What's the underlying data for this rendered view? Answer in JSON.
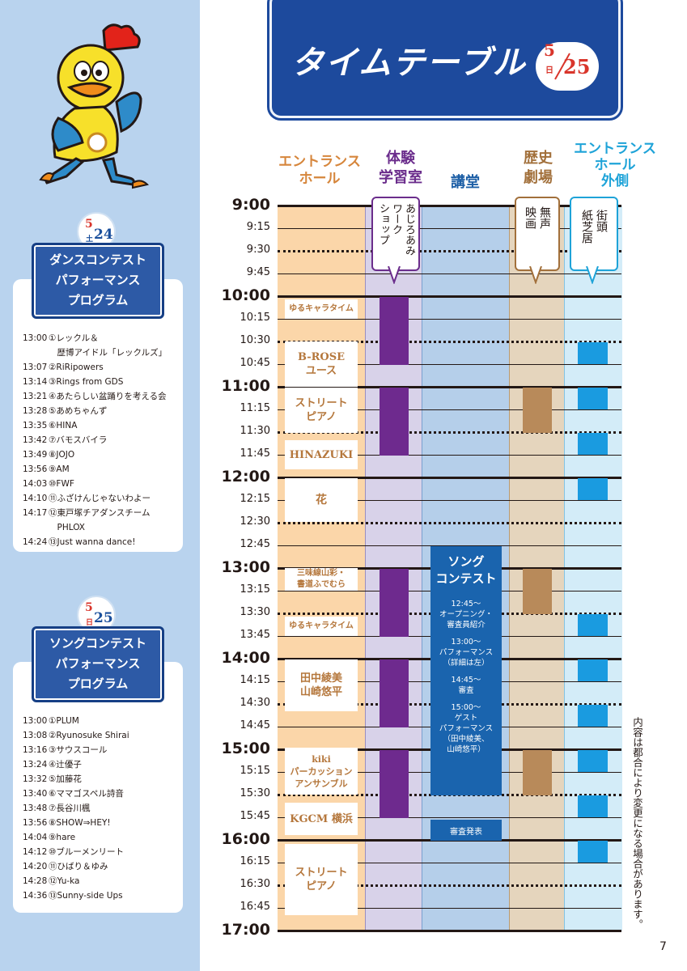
{
  "header": {
    "title": "タイムテーブル",
    "date_month": "5",
    "date_day": "25",
    "date_weekday": "日"
  },
  "columns": [
    {
      "label": "エントランス\nホール",
      "color": "#d6863c"
    },
    {
      "label": "体験\n学習室",
      "color": "#6b2d8c"
    },
    {
      "label": "講堂",
      "color": "#1d5fa6"
    },
    {
      "label": "歴史\n劇場",
      "color": "#a2703b"
    },
    {
      "label": "エントランス\nホール\n外側",
      "color": "#1ea3d8"
    }
  ],
  "time_labels": [
    "9:00",
    "9:15",
    "9:30",
    "9:45",
    "10:00",
    "10:15",
    "10:30",
    "10:45",
    "11:00",
    "11:15",
    "11:30",
    "11:45",
    "12:00",
    "12:15",
    "12:30",
    "12:45",
    "13:00",
    "13:15",
    "13:30",
    "13:45",
    "14:00",
    "14:15",
    "14:30",
    "14:45",
    "15:00",
    "15:15",
    "15:30",
    "15:45",
    "16:00",
    "16:15",
    "16:30",
    "16:45",
    "17:00"
  ],
  "entrance_events": [
    {
      "label": "ゆるキャラタイム"
    },
    {
      "label": "B-ROSE\nユース"
    },
    {
      "label": "ストリート\nピアノ"
    },
    {
      "label": "HINAZUKI"
    },
    {
      "label": "花"
    },
    {
      "label": "三味線山彩・\n書道ふでむら"
    },
    {
      "label": "ゆるキャラタイム"
    },
    {
      "label": "田中綾美\n山崎悠平"
    },
    {
      "label": "kiki\nパーカッション\nアンサンブル"
    },
    {
      "label": "KGCM 横浜"
    },
    {
      "label": "ストリート\nピアノ"
    }
  ],
  "callouts": {
    "workshop": "あじろあみ\nワーク\nショップ",
    "silent_film": "無声\n映画",
    "street": "街頭\n紙芝居"
  },
  "song_contest": {
    "title": "ソング\nコンテスト",
    "items": [
      "12:45～\nオープニング・\n審査員紹介",
      "13:00～\nパフォーマンス\n（詳細は左）",
      "14:45～\n審査",
      "15:00～\nゲスト\nパフォーマンス\n（田中綾美、\n山崎悠平）"
    ],
    "result": "審査発表"
  },
  "note": "内容は都合により変更になる場合があります。",
  "page_number": "7",
  "program_524": {
    "badge_month": "5",
    "badge_day": "24",
    "badge_weekday": "土",
    "title": "ダンスコンテスト\nパフォーマンス\nプログラム",
    "items": [
      {
        "time": "13:00",
        "name": "①レックル＆\n　歴博アイドル「レックルズ」"
      },
      {
        "time": "13:07",
        "name": "②RiRipowers"
      },
      {
        "time": "13:14",
        "name": "③Rings from GDS"
      },
      {
        "time": "13:21",
        "name": "④あたらしい盆踊りを考える会"
      },
      {
        "time": "13:28",
        "name": "⑤あめちゃんず"
      },
      {
        "time": "13:35",
        "name": "⑥HINA"
      },
      {
        "time": "13:42",
        "name": "⑦バモスバイラ"
      },
      {
        "time": "13:49",
        "name": "⑧JOJO"
      },
      {
        "time": "13:56",
        "name": "⑨AM"
      },
      {
        "time": "14:03",
        "name": "⑩FWF"
      },
      {
        "time": "14:10",
        "name": "⑪ふざけんじゃないわよー"
      },
      {
        "time": "14:17",
        "name": "⑫東戸塚チアダンスチーム\n　PHLOX"
      },
      {
        "time": "14:24",
        "name": "⑬Just wanna dance!"
      }
    ]
  },
  "program_525": {
    "badge_month": "5",
    "badge_day": "25",
    "badge_weekday": "日",
    "title": "ソングコンテスト\nパフォーマンス\nプログラム",
    "items": [
      {
        "time": "13:00",
        "name": "①PLUM"
      },
      {
        "time": "13:08",
        "name": "②Ryunosuke Shirai"
      },
      {
        "time": "13:16",
        "name": "③サウスコール"
      },
      {
        "time": "13:24",
        "name": "④辻優子"
      },
      {
        "time": "13:32",
        "name": "⑤加藤花"
      },
      {
        "time": "13:40",
        "name": "⑥ママゴスペル詩音"
      },
      {
        "time": "13:48",
        "name": "⑦長谷川楓"
      },
      {
        "time": "13:56",
        "name": "⑧SHOW⇒HEY!"
      },
      {
        "time": "14:04",
        "name": "⑨hare"
      },
      {
        "time": "14:12",
        "name": "⑩ブルーメンリート"
      },
      {
        "time": "14:20",
        "name": "⑪ひばり＆ゆみ"
      },
      {
        "time": "14:28",
        "name": "⑫Yu-ka"
      },
      {
        "time": "14:36",
        "name": "⑬Sunny-side Ups"
      }
    ]
  }
}
